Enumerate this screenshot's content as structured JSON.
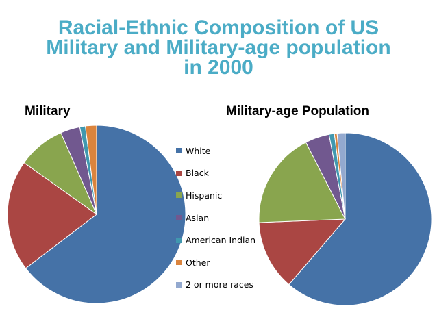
{
  "slide": {
    "title_lines": [
      "Racial-Ethnic Composition of US",
      "Military and Military-age population",
      "in 2000"
    ]
  },
  "colors": {
    "White": "#4572a7",
    "Black": "#aa4643",
    "Hispanic": "#89a54e",
    "Asian": "#71588f",
    "American Indian": "#4198af",
    "Other": "#db843d",
    "2 or more races": "#93a9cf"
  },
  "chart_data": [
    {
      "type": "pie",
      "title": "Military",
      "labels": [
        "White",
        "Black",
        "Hispanic",
        "Asian",
        "American Indian",
        "Other",
        "2 or more races"
      ],
      "values": [
        64,
        20,
        8.5,
        3.5,
        1,
        2,
        0
      ]
    },
    {
      "type": "pie",
      "title": "Military-age Population",
      "labels": [
        "White",
        "Black",
        "Hispanic",
        "Asian",
        "American Indian",
        "Other",
        "2 or more races"
      ],
      "values": [
        61,
        13,
        18,
        4.5,
        1,
        0.5,
        1.5
      ]
    }
  ],
  "legend": {
    "placement": "center",
    "entries": [
      "White",
      "Black",
      "Hispanic",
      "Asian",
      "American Indian",
      "Other",
      "2 or more races"
    ]
  }
}
